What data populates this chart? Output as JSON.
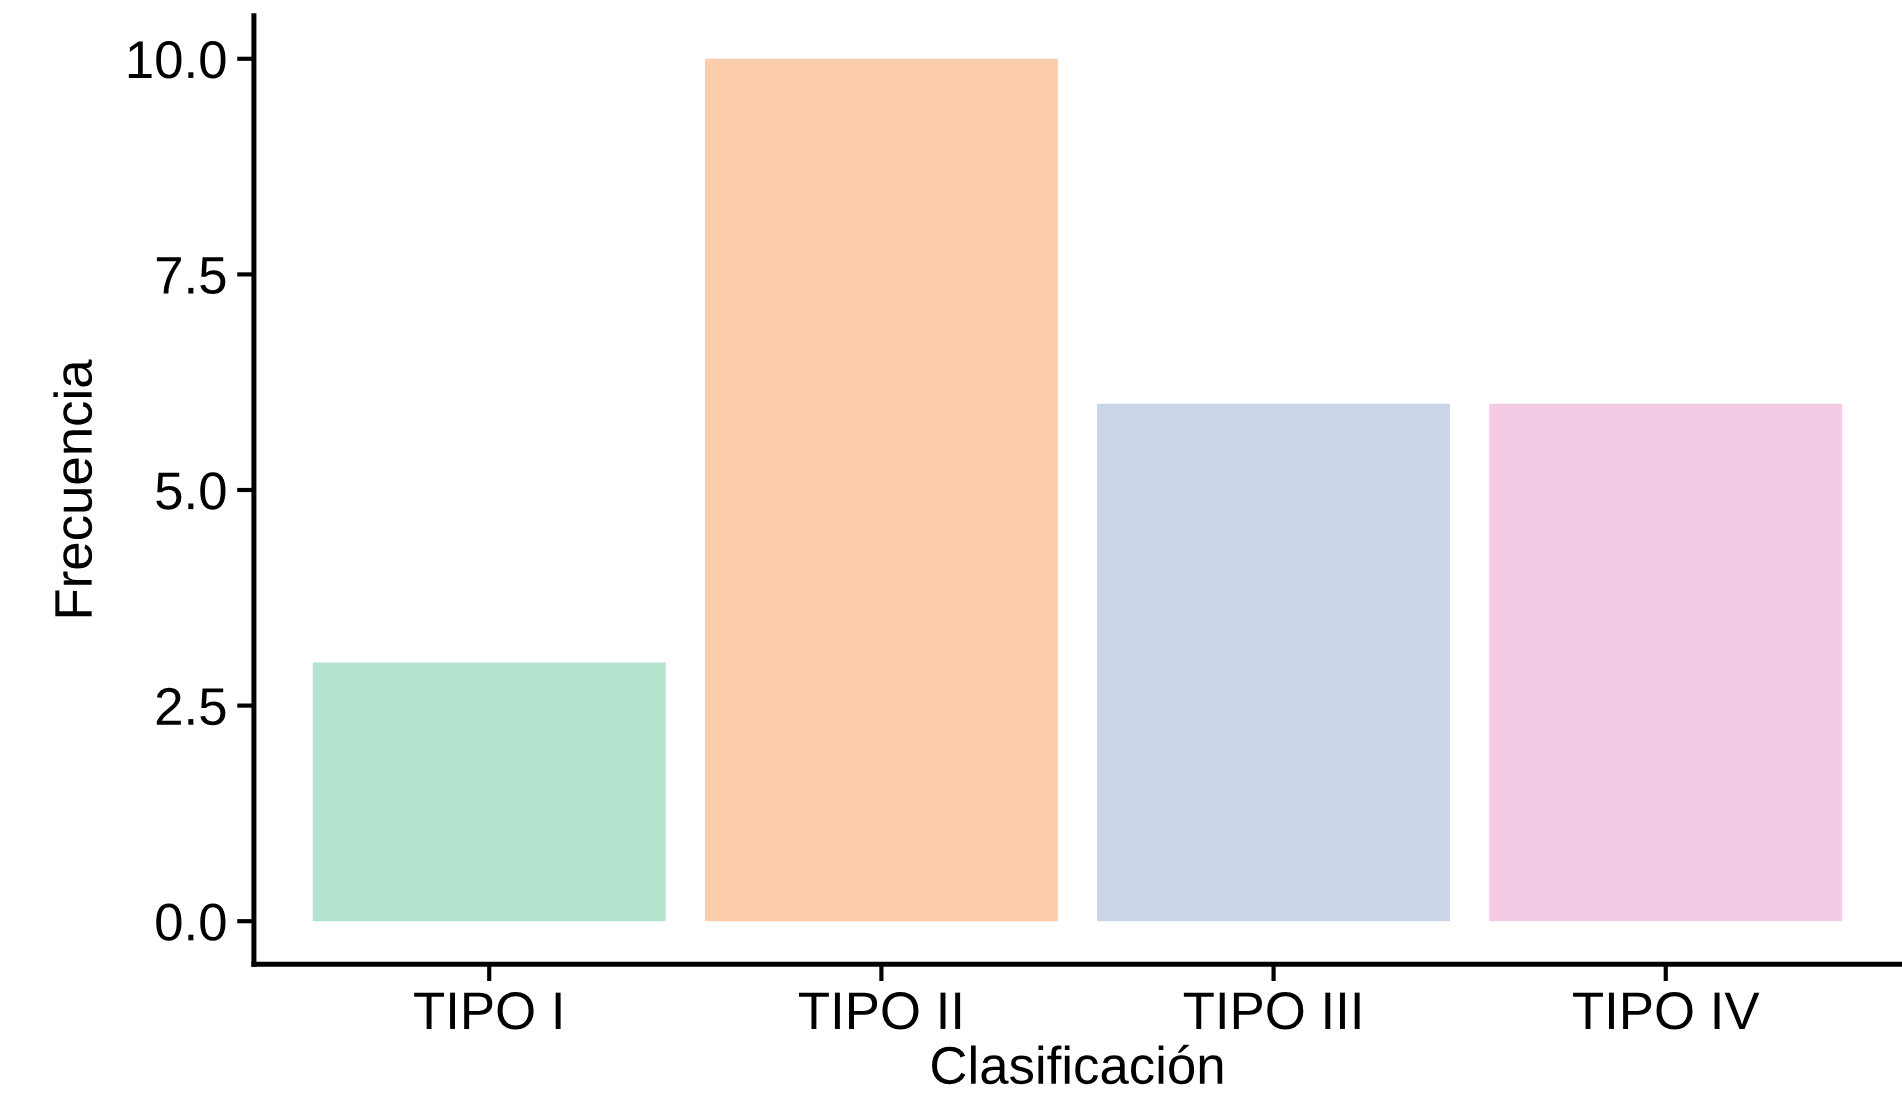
{
  "chart_data": {
    "type": "bar",
    "xlabel": "Clasificación",
    "ylabel": "Frecuencia",
    "categories": [
      "TIPO I",
      "TIPO II",
      "TIPO III",
      "TIPO IV"
    ],
    "values": [
      3,
      10,
      6,
      6
    ],
    "colors": [
      "#b3e2cd",
      "#fdcdac",
      "#cbd5e8",
      "#f4cae4"
    ],
    "ylim": [
      -0.5,
      10.5
    ],
    "yticks": [
      {
        "value": 0,
        "label": "0.0"
      },
      {
        "value": 2.5,
        "label": "2.5"
      },
      {
        "value": 5,
        "label": "5.0"
      },
      {
        "value": 7.5,
        "label": "7.5"
      },
      {
        "value": 10,
        "label": "10.0"
      }
    ],
    "grid": false,
    "legend": false
  }
}
